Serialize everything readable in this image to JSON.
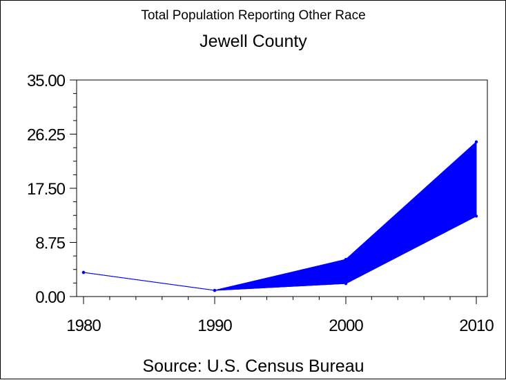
{
  "chart_data": {
    "type": "area",
    "title": "Total Population Reporting Other Race",
    "subtitle": "Jewell County",
    "source": "Source: U.S. Census Bureau",
    "x": [
      1980,
      1990,
      2000,
      2010
    ],
    "x_tick_labels": [
      "1980",
      "1990",
      "2000",
      "2010"
    ],
    "y_tick_labels": [
      "0.00",
      "8.75",
      "17.50",
      "26.25",
      "35.00"
    ],
    "y_ticks": [
      0,
      8.75,
      17.5,
      26.25,
      35
    ],
    "xlim": [
      1980,
      2010
    ],
    "ylim": [
      0,
      35
    ],
    "grid": false,
    "series": [
      {
        "values": [
          3.9,
          1.0,
          2.1,
          13.0
        ]
      },
      {
        "values": [
          3.9,
          1.0,
          6.0,
          25.0
        ]
      }
    ],
    "colors": {
      "series": "#0000ff",
      "axis": "#000000"
    }
  }
}
